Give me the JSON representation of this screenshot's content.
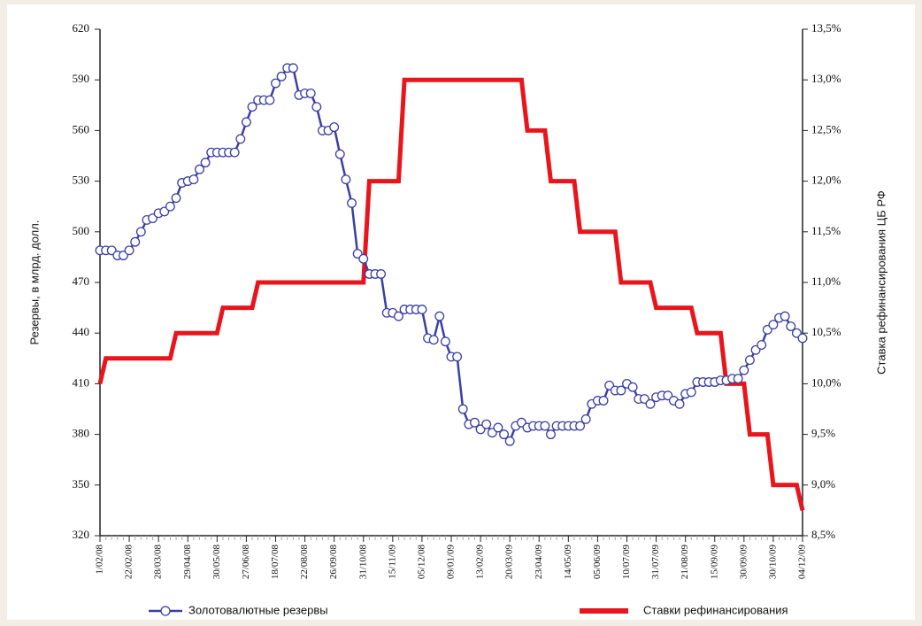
{
  "chart_data": {
    "type": "line",
    "y_label": "Резервы, в млрд. долл.",
    "y2_label": "Ставка рефинансирования ЦБ РФ",
    "categories": [
      "1/02/08",
      null,
      null,
      null,
      null,
      "22/02/08",
      null,
      null,
      null,
      null,
      "28/03/08",
      null,
      null,
      null,
      null,
      "29/04/08",
      null,
      null,
      null,
      null,
      "30/05/08",
      null,
      null,
      null,
      null,
      "27/06/08",
      null,
      null,
      null,
      null,
      "18/07/08",
      null,
      null,
      null,
      null,
      "22/08/08",
      null,
      null,
      null,
      null,
      "26/09/08",
      null,
      null,
      null,
      null,
      "31/10/08",
      null,
      null,
      null,
      null,
      "15/11/09",
      null,
      null,
      null,
      null,
      "05/12/08",
      null,
      null,
      null,
      null,
      "09/01/09",
      null,
      null,
      null,
      null,
      "13/02/09",
      null,
      null,
      null,
      null,
      "20/03/09",
      null,
      null,
      null,
      null,
      "23/04/09",
      null,
      null,
      null,
      null,
      "14/05/09",
      null,
      null,
      null,
      null,
      "05/06/09",
      null,
      null,
      null,
      null,
      "10/07/09",
      null,
      null,
      null,
      null,
      "31/07/09",
      null,
      null,
      null,
      null,
      "21/08/09",
      null,
      null,
      null,
      null,
      "15/09/09",
      null,
      null,
      null,
      null,
      "30/09/09",
      null,
      null,
      null,
      null,
      "30/10/09",
      null,
      null,
      null,
      null,
      "04/12/09"
    ],
    "series": [
      {
        "name": "Золотовалютные резервы",
        "color": "#3b3fa3",
        "marker": "circle",
        "values": [
          489,
          489,
          489,
          486,
          486,
          489,
          494,
          500,
          507,
          508,
          511,
          512,
          515,
          520,
          529,
          530,
          531,
          537,
          541,
          547,
          547,
          547,
          547,
          547,
          555,
          565,
          574,
          578,
          578,
          578,
          588,
          592,
          597,
          597,
          581,
          582,
          582,
          574,
          560,
          560,
          562,
          546,
          531,
          517,
          487,
          484,
          475,
          475,
          475,
          452,
          452,
          450,
          454,
          454,
          454,
          454,
          437,
          436,
          450,
          435,
          426,
          426,
          395,
          386,
          387,
          383,
          386,
          381,
          384,
          380,
          376,
          385,
          387,
          384,
          385,
          385,
          385,
          380,
          385,
          385,
          385,
          385,
          385,
          389,
          398,
          400,
          400,
          409,
          406,
          406,
          410,
          408,
          401,
          401,
          398,
          402,
          403,
          403,
          400,
          398,
          404,
          405,
          411,
          411,
          411,
          411,
          412,
          412,
          413,
          413,
          418,
          424,
          430,
          433,
          442,
          445,
          449,
          450,
          444,
          440,
          437
        ]
      },
      {
        "name": "Ставки рефинансирования",
        "color": "#e8151c",
        "axis": "y2",
        "values": [
          10.0,
          10.25,
          10.25,
          10.25,
          10.25,
          10.25,
          10.25,
          10.25,
          10.25,
          10.25,
          10.25,
          10.25,
          10.25,
          10.5,
          10.5,
          10.5,
          10.5,
          10.5,
          10.5,
          10.5,
          10.5,
          10.75,
          10.75,
          10.75,
          10.75,
          10.75,
          10.75,
          11.0,
          11.0,
          11.0,
          11.0,
          11.0,
          11.0,
          11.0,
          11.0,
          11.0,
          11.0,
          11.0,
          11.0,
          11.0,
          11.0,
          11.0,
          11.0,
          11.0,
          11.0,
          11.0,
          12.0,
          12.0,
          12.0,
          12.0,
          12.0,
          12.0,
          13.0,
          13.0,
          13.0,
          13.0,
          13.0,
          13.0,
          13.0,
          13.0,
          13.0,
          13.0,
          13.0,
          13.0,
          13.0,
          13.0,
          13.0,
          13.0,
          13.0,
          13.0,
          13.0,
          13.0,
          13.0,
          12.5,
          12.5,
          12.5,
          12.5,
          12.0,
          12.0,
          12.0,
          12.0,
          12.0,
          11.5,
          11.5,
          11.5,
          11.5,
          11.5,
          11.5,
          11.5,
          11.0,
          11.0,
          11.0,
          11.0,
          11.0,
          11.0,
          10.75,
          10.75,
          10.75,
          10.75,
          10.75,
          10.75,
          10.75,
          10.5,
          10.5,
          10.5,
          10.5,
          10.5,
          10.0,
          10.0,
          10.0,
          10.0,
          9.5,
          9.5,
          9.5,
          9.5,
          9.0,
          9.0,
          9.0,
          9.0,
          9.0,
          8.75
        ]
      }
    ],
    "ylim": [
      320,
      620
    ],
    "yticks": [
      320,
      350,
      380,
      410,
      440,
      470,
      500,
      530,
      560,
      590,
      620
    ],
    "y2lim": [
      8.5,
      13.5
    ],
    "y2ticks": [
      {
        "value": 8.5,
        "label": "8,5%"
      },
      {
        "value": 9.0,
        "label": "9,0%"
      },
      {
        "value": 9.5,
        "label": "9,5%"
      },
      {
        "value": 10.0,
        "label": "10,0%"
      },
      {
        "value": 10.5,
        "label": "10,5%"
      },
      {
        "value": 11.0,
        "label": "11,0%"
      },
      {
        "value": 11.5,
        "label": "11,5%"
      },
      {
        "value": 12.0,
        "label": "12,0%"
      },
      {
        "value": 12.5,
        "label": "12,5%"
      },
      {
        "value": 13.0,
        "label": "13,0%"
      },
      {
        "value": 13.5,
        "label": "13,5%"
      }
    ],
    "legend": "bottom"
  }
}
